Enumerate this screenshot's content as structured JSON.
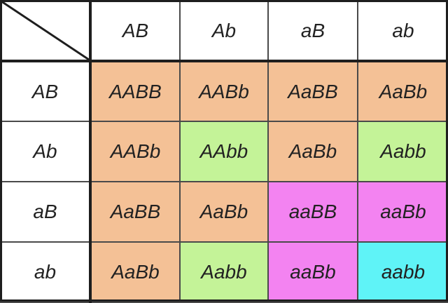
{
  "columns": [
    "AB",
    "Ab",
    "aB",
    "ab"
  ],
  "rows": [
    {
      "label": "AB",
      "cells": [
        {
          "text": "AABB",
          "type": "dominant-both"
        },
        {
          "text": "AABb",
          "type": "dominant-both"
        },
        {
          "text": "AaBB",
          "type": "dominant-both"
        },
        {
          "text": "AaBb",
          "type": "dominant-both"
        }
      ]
    },
    {
      "label": "Ab",
      "cells": [
        {
          "text": "AABb",
          "type": "dominant-both"
        },
        {
          "text": "AAbb",
          "type": "dominant-a-recessive-b"
        },
        {
          "text": "AaBb",
          "type": "dominant-both"
        },
        {
          "text": "Aabb",
          "type": "dominant-a-recessive-b"
        }
      ]
    },
    {
      "label": "aB",
      "cells": [
        {
          "text": "AaBB",
          "type": "dominant-both"
        },
        {
          "text": "AaBb",
          "type": "dominant-both"
        },
        {
          "text": "aaBB",
          "type": "recessive-a-dominant-b"
        },
        {
          "text": "aaBb",
          "type": "recessive-a-dominant-b"
        }
      ]
    },
    {
      "label": "ab",
      "cells": [
        {
          "text": "AaBb",
          "type": "dominant-both"
        },
        {
          "text": "Aabb",
          "type": "dominant-a-recessive-b"
        },
        {
          "text": "aaBb",
          "type": "recessive-a-dominant-b"
        },
        {
          "text": "aabb",
          "type": "recessive-both"
        }
      ]
    }
  ],
  "colors": {
    "dominant-both": "#f4c196",
    "dominant-a-recessive-b": "#c4f398",
    "recessive-a-dominant-b": "#f383f1",
    "recessive-both": "#5ff3f7",
    "header": "#ffffff"
  }
}
